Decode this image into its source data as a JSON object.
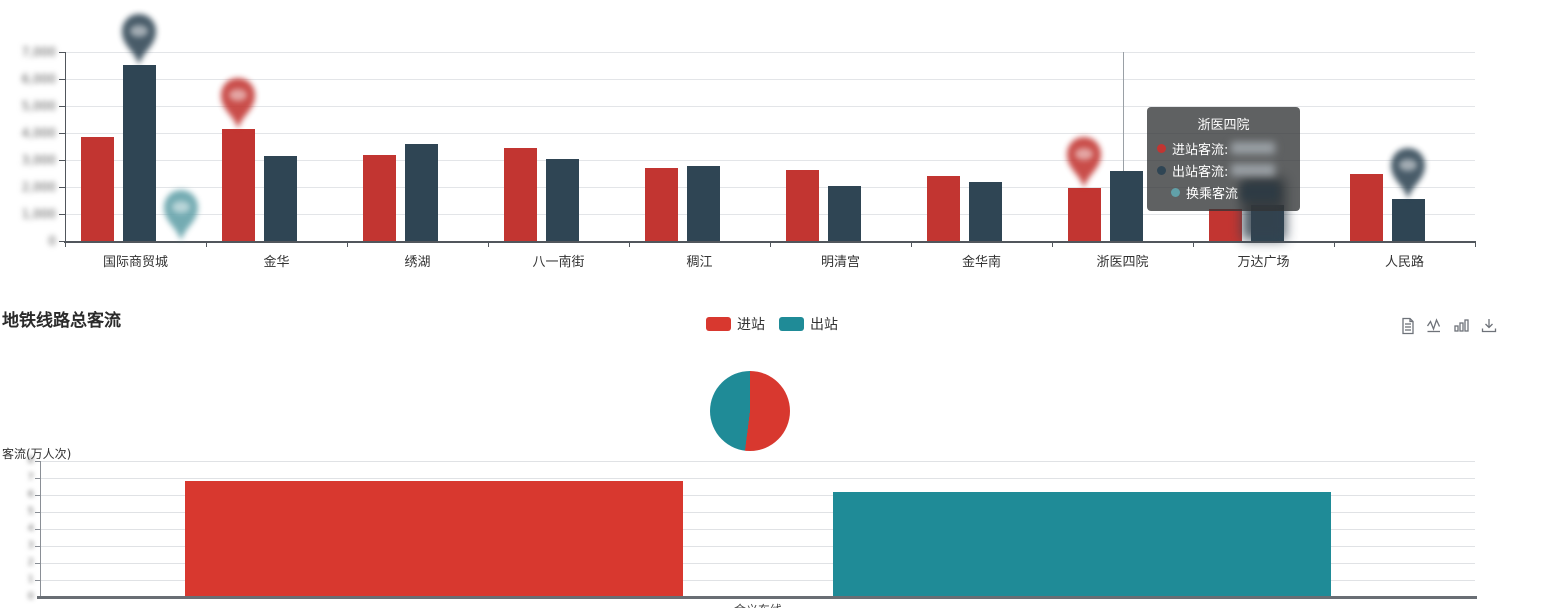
{
  "colors": {
    "red": "#c23531",
    "dark": "#2f4554",
    "teal_pin": "#61a0a8",
    "bright_red": "#d8382f",
    "teal": "#1f8b97"
  },
  "chart_data": [
    {
      "id": "station_flow_bar",
      "type": "bar",
      "title": "",
      "categories": [
        "国际商贸城",
        "金华",
        "绣湖",
        "八一南街",
        "稠江",
        "明清宫",
        "金华南",
        "浙医四院",
        "万达广场",
        "人民路"
      ],
      "series": [
        {
          "name": "进站客流",
          "color": "#c23531",
          "values": [
            3870,
            4130,
            3170,
            3430,
            2700,
            2620,
            2400,
            1950,
            1180,
            2470
          ]
        },
        {
          "name": "出站客流",
          "color": "#2f4554",
          "values": [
            6520,
            3130,
            3580,
            3020,
            2780,
            2040,
            2180,
            2580,
            1330,
            1550
          ]
        },
        {
          "name": "换乘客流",
          "color": "#61a0a8",
          "values": [
            0,
            0,
            0,
            0,
            0,
            0,
            0,
            0,
            0,
            0
          ]
        }
      ],
      "ylim": [
        0,
        7000
      ],
      "y_tick_labels": [
        "7,000",
        "6,000",
        "5,000",
        "4,000",
        "3,000",
        "2,000",
        "1,000",
        "0"
      ],
      "y_ticks_blurred": true,
      "grid": true,
      "markers": [
        {
          "series": 1,
          "category": 0,
          "shape": "pin"
        },
        {
          "series": 2,
          "category": 0,
          "shape": "pin"
        },
        {
          "series": 0,
          "category": 1,
          "shape": "pin"
        },
        {
          "series": 0,
          "category": 7,
          "shape": "pin"
        },
        {
          "series": 1,
          "category": 9,
          "shape": "pin"
        }
      ],
      "axis_pointer_category": "浙医四院"
    },
    {
      "id": "line_total_pie",
      "type": "pie",
      "slices": [
        {
          "label": "进站",
          "value": 52,
          "color": "#d8382f"
        },
        {
          "label": "出站",
          "value": 48,
          "color": "#1f8b97"
        }
      ],
      "legend_position": "top-center"
    },
    {
      "id": "line_total_bar",
      "type": "bar",
      "ylabel": "客流(万人次)",
      "categories": [
        "金义东线"
      ],
      "series": [
        {
          "name": "进站",
          "color": "#d8382f",
          "values": [
            6.8
          ]
        },
        {
          "name": "出站",
          "color": "#1f8b97",
          "values": [
            6.2
          ]
        }
      ],
      "ylim": [
        0,
        8
      ],
      "y_ticks_blurred": true,
      "grid": true
    }
  ],
  "tooltip": {
    "title": "浙医四院",
    "rows": [
      {
        "label": "进站客流:",
        "color": "#c23531",
        "value_blurred": true
      },
      {
        "label": "出站客流:",
        "color": "#2f4554",
        "value_blurred": true
      },
      {
        "label": "换乘客流",
        "color": "#61a0a8",
        "value_blurred": true
      }
    ]
  },
  "section": {
    "title": "地铁线路总客流",
    "legend": [
      {
        "label": "进站",
        "color": "#d8382f"
      },
      {
        "label": "出站",
        "color": "#1f8b97"
      }
    ],
    "toolbar": [
      {
        "icon": "data-view-icon"
      },
      {
        "icon": "line-chart-icon"
      },
      {
        "icon": "bar-chart-icon"
      },
      {
        "icon": "download-icon"
      }
    ]
  }
}
